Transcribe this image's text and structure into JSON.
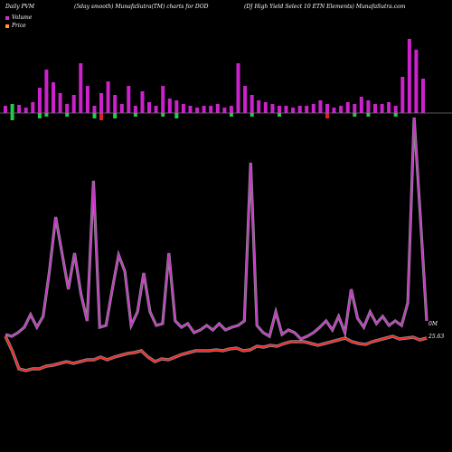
{
  "header": {
    "left": "Daily PVM",
    "middle": "(5day smooth) MunafaSutra(TM) charts for DOD",
    "right": "(DJ High Yield Select 10  ETN  Elements) MunafaSutra.com"
  },
  "legend": [
    {
      "label": "Volume",
      "color": "#cc33cc"
    },
    {
      "label": "Price",
      "color": "#ff9933"
    }
  ],
  "colors": {
    "volume_up": "#cc22cc",
    "volume_down_green": "#22cc44",
    "volume_down_red": "#dd2222",
    "volume_line": "#cc33cc",
    "price_line": "#ff2222",
    "baseline": "#777777"
  },
  "chart_data": {
    "type": "bar+line",
    "volume_bars": [
      {
        "v": 8,
        "c": "up"
      },
      {
        "v": 10,
        "c": "down_green"
      },
      {
        "v": 9,
        "c": "up"
      },
      {
        "v": 6,
        "c": "up"
      },
      {
        "v": 12,
        "c": "up"
      },
      {
        "v": 28,
        "c": "up"
      },
      {
        "v": 48,
        "c": "up"
      },
      {
        "v": 34,
        "c": "up"
      },
      {
        "v": 22,
        "c": "up"
      },
      {
        "v": 10,
        "c": "up"
      },
      {
        "v": 20,
        "c": "up"
      },
      {
        "v": 55,
        "c": "up"
      },
      {
        "v": 30,
        "c": "up"
      },
      {
        "v": 8,
        "c": "up"
      },
      {
        "v": 22,
        "c": "up"
      },
      {
        "v": 35,
        "c": "up"
      },
      {
        "v": 20,
        "c": "up"
      },
      {
        "v": 10,
        "c": "up"
      },
      {
        "v": 30,
        "c": "up"
      },
      {
        "v": 8,
        "c": "up"
      },
      {
        "v": 24,
        "c": "up"
      },
      {
        "v": 12,
        "c": "up"
      },
      {
        "v": 8,
        "c": "up"
      },
      {
        "v": 30,
        "c": "up"
      },
      {
        "v": 16,
        "c": "up"
      },
      {
        "v": 14,
        "c": "up"
      },
      {
        "v": 10,
        "c": "up"
      },
      {
        "v": 8,
        "c": "up"
      },
      {
        "v": 6,
        "c": "up"
      },
      {
        "v": 8,
        "c": "up"
      },
      {
        "v": 8,
        "c": "up"
      },
      {
        "v": 10,
        "c": "up"
      },
      {
        "v": 6,
        "c": "up"
      },
      {
        "v": 8,
        "c": "up"
      },
      {
        "v": 55,
        "c": "up"
      },
      {
        "v": 30,
        "c": "up"
      },
      {
        "v": 20,
        "c": "up"
      },
      {
        "v": 14,
        "c": "up"
      },
      {
        "v": 12,
        "c": "up"
      },
      {
        "v": 10,
        "c": "up"
      },
      {
        "v": 8,
        "c": "up"
      },
      {
        "v": 8,
        "c": "up"
      },
      {
        "v": 6,
        "c": "up"
      },
      {
        "v": 8,
        "c": "up"
      },
      {
        "v": 8,
        "c": "up"
      },
      {
        "v": 10,
        "c": "up"
      },
      {
        "v": 14,
        "c": "up"
      },
      {
        "v": 10,
        "c": "up"
      },
      {
        "v": 6,
        "c": "up"
      },
      {
        "v": 8,
        "c": "up"
      },
      {
        "v": 12,
        "c": "up"
      },
      {
        "v": 10,
        "c": "up"
      },
      {
        "v": 18,
        "c": "up"
      },
      {
        "v": 14,
        "c": "up"
      },
      {
        "v": 10,
        "c": "up"
      },
      {
        "v": 10,
        "c": "up"
      },
      {
        "v": 12,
        "c": "up"
      },
      {
        "v": 8,
        "c": "up"
      },
      {
        "v": 40,
        "c": "up"
      },
      {
        "v": 82,
        "c": "up"
      },
      {
        "v": 70,
        "c": "up"
      },
      {
        "v": 38,
        "c": "up"
      }
    ],
    "volume_below": [
      {
        "i": 1,
        "v": 8,
        "c": "down_green"
      },
      {
        "i": 5,
        "v": 6,
        "c": "down_green"
      },
      {
        "i": 6,
        "v": 4,
        "c": "down_green"
      },
      {
        "i": 9,
        "v": 4,
        "c": "down_green"
      },
      {
        "i": 13,
        "v": 6,
        "c": "down_green"
      },
      {
        "i": 14,
        "v": 8,
        "c": "down_red"
      },
      {
        "i": 16,
        "v": 6,
        "c": "down_green"
      },
      {
        "i": 19,
        "v": 4,
        "c": "down_green"
      },
      {
        "i": 23,
        "v": 4,
        "c": "down_green"
      },
      {
        "i": 25,
        "v": 6,
        "c": "down_green"
      },
      {
        "i": 33,
        "v": 4,
        "c": "down_green"
      },
      {
        "i": 36,
        "v": 4,
        "c": "down_green"
      },
      {
        "i": 40,
        "v": 4,
        "c": "down_green"
      },
      {
        "i": 47,
        "v": 6,
        "c": "down_red"
      },
      {
        "i": 51,
        "v": 4,
        "c": "down_green"
      },
      {
        "i": 53,
        "v": 4,
        "c": "down_green"
      },
      {
        "i": 57,
        "v": 4,
        "c": "down_green"
      }
    ],
    "volume_line": [
      370,
      372,
      368,
      362,
      348,
      362,
      350,
      300,
      240,
      280,
      320,
      280,
      325,
      355,
      200,
      362,
      360,
      320,
      282,
      300,
      360,
      345,
      302,
      345,
      360,
      358,
      280,
      355,
      362,
      358,
      368,
      365,
      360,
      365,
      358,
      365,
      362,
      360,
      355,
      180,
      360,
      368,
      372,
      345,
      370,
      365,
      368,
      375,
      372,
      368,
      362,
      355,
      365,
      350,
      368,
      320,
      352,
      362,
      345,
      358,
      350,
      360,
      355,
      360,
      335,
      130,
      240,
      355
    ],
    "price_line": [
      372,
      388,
      408,
      410,
      408,
      408,
      405,
      404,
      402,
      400,
      402,
      400,
      398,
      398,
      395,
      398,
      395,
      393,
      391,
      390,
      388,
      395,
      400,
      397,
      398,
      395,
      392,
      390,
      388,
      388,
      388,
      387,
      388,
      386,
      385,
      388,
      387,
      383,
      384,
      382,
      383,
      380,
      378,
      378,
      378,
      380,
      382,
      380,
      378,
      376,
      374,
      378,
      380,
      381,
      378,
      376,
      374,
      372,
      375,
      374,
      373,
      376,
      374
    ],
    "volume_label": "0M",
    "price_label": "25.63"
  }
}
